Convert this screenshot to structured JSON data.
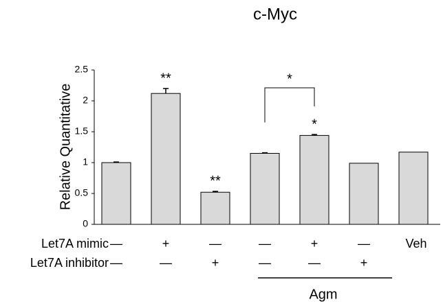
{
  "chart_data": {
    "type": "bar",
    "title": "c-Myc",
    "y_label": "Relative Quantitative",
    "values": [
      1.0,
      2.12,
      0.52,
      1.15,
      1.44,
      0.99,
      1.17
    ],
    "errors": [
      0.01,
      0.08,
      0.015,
      0.01,
      0.015,
      null,
      null
    ],
    "significance": [
      null,
      "**",
      "**",
      null,
      "*",
      null,
      null
    ],
    "bracket_label": "*",
    "color": "#d9d9d9",
    "ylim": [
      0,
      2.5
    ],
    "yticks": [
      0,
      0.5,
      1,
      1.5,
      2,
      2.5
    ],
    "grid": false,
    "conditions": {
      "rows": [
        {
          "label": "Let7A mimic",
          "cells": [
            "—",
            "+",
            "—",
            "—",
            "+",
            "—",
            "Veh"
          ]
        },
        {
          "label": "Let7A inhibitor",
          "cells": [
            "—",
            "—",
            "+",
            "—",
            "—",
            "+",
            null
          ]
        }
      ],
      "group": "Agm"
    }
  }
}
